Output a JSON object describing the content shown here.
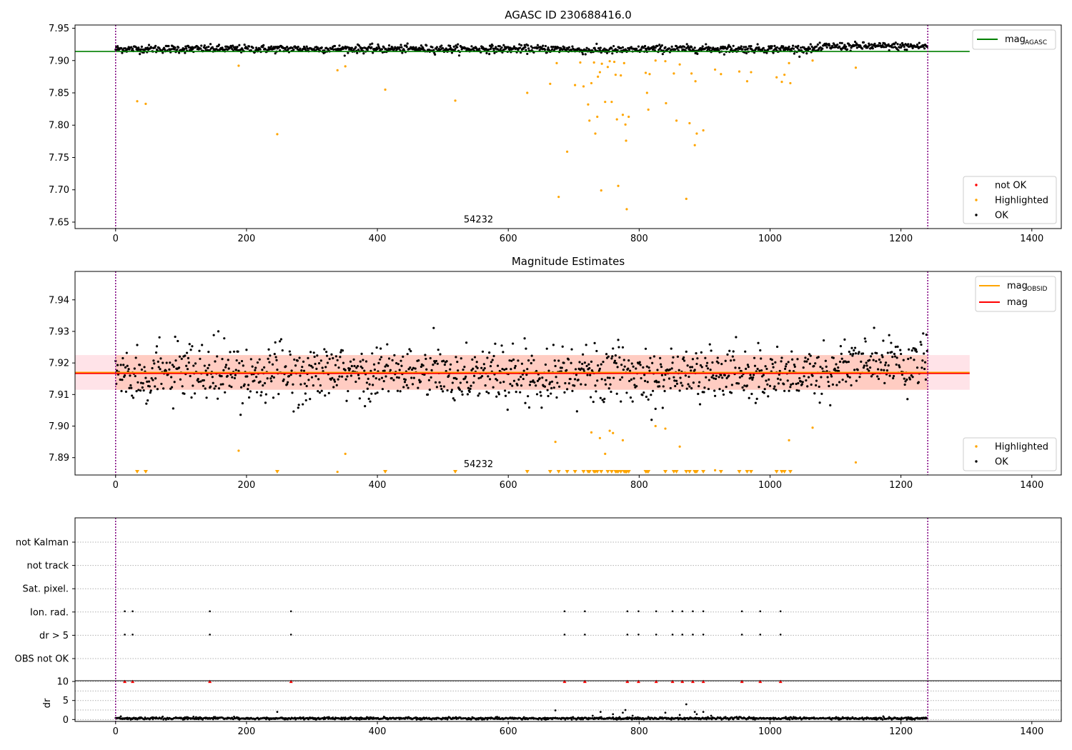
{
  "chart_data": [
    {
      "type": "scatter",
      "title": "AGASC ID 230688416.0",
      "xlim": [
        -62,
        1445
      ],
      "ylim": [
        7.64,
        7.955
      ],
      "xticks": [
        0,
        200,
        400,
        600,
        800,
        1000,
        1200,
        1400
      ],
      "yticks": [
        7.65,
        7.7,
        7.75,
        7.8,
        7.85,
        7.9,
        7.95
      ],
      "vlines": [
        0,
        1241
      ],
      "obsid_label": {
        "text": "54232",
        "x": 620,
        "y": 7.647
      },
      "hlines": [
        {
          "name": "mag_AGASC",
          "y": 7.914,
          "x0": -62,
          "x1": 1305,
          "color": "#008000"
        }
      ],
      "ok_series": {
        "name": "OK",
        "color": "#000000",
        "count": 1241,
        "x_range": [
          0,
          1241
        ],
        "y_center": 7.918,
        "y_spread": 0.006
      },
      "highlighted": {
        "name": "Highlighted",
        "color": "#ffa500",
        "points": [
          [
            33,
            7.837
          ],
          [
            46,
            7.833
          ],
          [
            188,
            7.892
          ],
          [
            247,
            7.786
          ],
          [
            339,
            7.885
          ],
          [
            351,
            7.891
          ],
          [
            412,
            7.855
          ],
          [
            519,
            7.838
          ],
          [
            629,
            7.85
          ],
          [
            664,
            7.864
          ],
          [
            674,
            7.896
          ],
          [
            677,
            7.689
          ],
          [
            690,
            7.759
          ],
          [
            702,
            7.862
          ],
          [
            710,
            7.897
          ],
          [
            715,
            7.86
          ],
          [
            722,
            7.832
          ],
          [
            724,
            7.807
          ],
          [
            727,
            7.865
          ],
          [
            731,
            7.897
          ],
          [
            733,
            7.787
          ],
          [
            736,
            7.813
          ],
          [
            737,
            7.875
          ],
          [
            740,
            7.882
          ],
          [
            742,
            7.699
          ],
          [
            743,
            7.895
          ],
          [
            748,
            7.836
          ],
          [
            752,
            7.89
          ],
          [
            755,
            7.899
          ],
          [
            758,
            7.836
          ],
          [
            762,
            7.898
          ],
          [
            764,
            7.878
          ],
          [
            766,
            7.809
          ],
          [
            768,
            7.706
          ],
          [
            772,
            7.877
          ],
          [
            775,
            7.816
          ],
          [
            777,
            7.896
          ],
          [
            779,
            7.801
          ],
          [
            780,
            7.776
          ],
          [
            781,
            7.67
          ],
          [
            784,
            7.813
          ],
          [
            810,
            7.881
          ],
          [
            812,
            7.85
          ],
          [
            814,
            7.824
          ],
          [
            816,
            7.879
          ],
          [
            825,
            7.9
          ],
          [
            840,
            7.899
          ],
          [
            841,
            7.834
          ],
          [
            853,
            7.88
          ],
          [
            857,
            7.807
          ],
          [
            862,
            7.894
          ],
          [
            872,
            7.686
          ],
          [
            877,
            7.803
          ],
          [
            880,
            7.88
          ],
          [
            885,
            7.769
          ],
          [
            886,
            7.868
          ],
          [
            888,
            7.787
          ],
          [
            898,
            7.792
          ],
          [
            916,
            7.886
          ],
          [
            925,
            7.879
          ],
          [
            953,
            7.883
          ],
          [
            965,
            7.868
          ],
          [
            971,
            7.882
          ],
          [
            1010,
            7.874
          ],
          [
            1018,
            7.867
          ],
          [
            1022,
            7.878
          ],
          [
            1029,
            7.896
          ],
          [
            1031,
            7.865
          ],
          [
            1065,
            7.9
          ],
          [
            1131,
            7.889
          ]
        ]
      },
      "legend_top": [
        {
          "label": "mag",
          "sub": "AGASC",
          "color": "#008000"
        }
      ],
      "legend_bottom": [
        {
          "label": "not OK",
          "color": "#ff0000"
        },
        {
          "label": "Highlighted",
          "color": "#ffa500"
        },
        {
          "label": "OK",
          "color": "#000000"
        }
      ]
    },
    {
      "type": "scatter",
      "title": "Magnitude Estimates",
      "xlim": [
        -62,
        1445
      ],
      "ylim": [
        7.8845,
        7.949
      ],
      "xticks": [
        0,
        200,
        400,
        600,
        800,
        1000,
        1200,
        1400
      ],
      "yticks": [
        7.89,
        7.9,
        7.91,
        7.92,
        7.93,
        7.94
      ],
      "vlines": [
        0,
        1241
      ],
      "obsid_label": {
        "text": "54232",
        "x": 620,
        "y": 7.8865
      },
      "band": {
        "y0": 7.9115,
        "y1": 7.9225,
        "x0": -62,
        "x1": 1305,
        "color": "#ffc0cb",
        "inner_color": "#ffa07a"
      },
      "hlines": [
        {
          "name": "mag_OBSID",
          "y": 7.917,
          "x0": -62,
          "x1": 1305,
          "color": "#ffa500"
        },
        {
          "name": "mag",
          "y": 7.9167,
          "x0": -62,
          "x1": 1305,
          "color": "#ff0000"
        }
      ],
      "ok_series": {
        "name": "OK",
        "color": "#000000",
        "count": 1241,
        "x_range": [
          0,
          1241
        ],
        "y_center": 7.9165,
        "y_spread": 0.0055
      },
      "highlighted": {
        "name": "Highlighted",
        "color": "#ffa500",
        "points": [
          [
            188,
            7.8922
          ],
          [
            339,
            7.8855
          ],
          [
            351,
            7.8912
          ],
          [
            672,
            7.895
          ],
          [
            727,
            7.898
          ],
          [
            740,
            7.8962
          ],
          [
            748,
            7.8912
          ],
          [
            755,
            7.8985
          ],
          [
            760,
            7.8978
          ],
          [
            775,
            7.8955
          ],
          [
            825,
            7.9
          ],
          [
            840,
            7.8992
          ],
          [
            862,
            7.8935
          ],
          [
            916,
            7.886
          ],
          [
            1029,
            7.8955
          ],
          [
            1065,
            7.8995
          ],
          [
            1131,
            7.8885
          ]
        ]
      },
      "off_scale_markers": [
        33,
        46,
        247,
        412,
        519,
        629,
        664,
        677,
        690,
        702,
        715,
        722,
        724,
        731,
        733,
        736,
        742,
        752,
        758,
        764,
        766,
        768,
        772,
        777,
        779,
        780,
        781,
        784,
        810,
        812,
        814,
        840,
        853,
        857,
        872,
        877,
        885,
        886,
        888,
        898,
        925,
        953,
        965,
        971,
        1010,
        1018,
        1022,
        1031
      ],
      "legend_top": [
        {
          "label": "mag",
          "sub": "OBSID",
          "color": "#ffa500"
        },
        {
          "label": "mag",
          "sub": "",
          "color": "#ff0000"
        }
      ],
      "legend_bottom": [
        {
          "label": "Highlighted",
          "color": "#ffa500"
        },
        {
          "label": "OK",
          "color": "#000000"
        }
      ]
    },
    {
      "type": "scatter",
      "title": "",
      "xlim": [
        -62,
        1445
      ],
      "xticks": [
        0,
        200,
        400,
        600,
        800,
        1000,
        1200,
        1400
      ],
      "vlines": [
        0,
        1241
      ],
      "flag_rows": [
        "not Kalman",
        "not track",
        "Sat. pixel.",
        "Ion. rad.",
        "dr > 5",
        "OBS not OK"
      ],
      "flag_points": {
        "Ion. rad.": [
          14,
          26,
          144,
          268,
          686,
          717,
          782,
          799,
          826,
          851,
          866,
          882,
          898,
          957,
          985,
          1016
        ],
        "dr > 5": [
          14,
          26,
          144,
          268,
          686,
          717,
          782,
          799,
          826,
          851,
          866,
          882,
          898,
          957,
          985,
          1016
        ]
      },
      "dr_panel": {
        "ylabel": "dr",
        "ylim": [
          -0.5,
          10.2
        ],
        "yticks": [
          0,
          5,
          10
        ],
        "capped_markers": {
          "y": 10,
          "color": "#ff0000",
          "x": [
            14,
            26,
            144,
            268,
            686,
            717,
            782,
            799,
            826,
            851,
            866,
            882,
            898,
            957,
            985,
            1016
          ]
        },
        "baseline": {
          "count": 1241,
          "x_range": [
            0,
            1241
          ],
          "y_center": 0.3,
          "y_spread": 0.15
        },
        "outliers": [
          [
            247,
            2.0
          ],
          [
            672,
            2.4
          ],
          [
            729,
            1.0
          ],
          [
            741,
            2.0
          ],
          [
            760,
            1.4
          ],
          [
            775,
            1.8
          ],
          [
            779,
            2.5
          ],
          [
            790,
            1.0
          ],
          [
            840,
            1.8
          ],
          [
            862,
            1.2
          ],
          [
            872,
            4.0
          ],
          [
            885,
            2.0
          ],
          [
            888,
            1.4
          ],
          [
            898,
            2.0
          ],
          [
            910,
            1.0
          ]
        ]
      }
    }
  ]
}
